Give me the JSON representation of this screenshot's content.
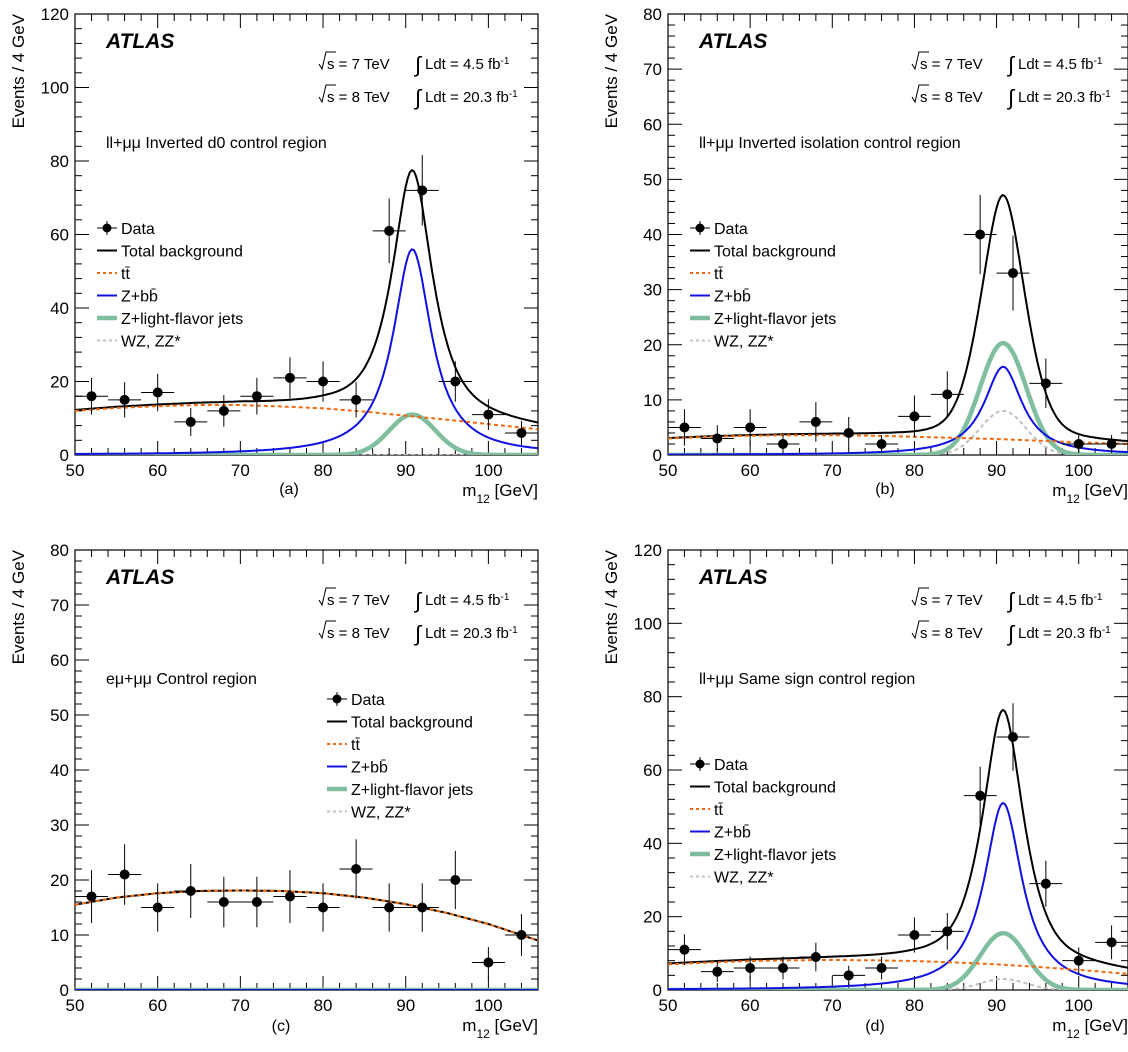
{
  "atlas_label": "ATLAS",
  "energy_lines": [
    {
      "sqrt": "s = 7 TeV",
      "lumi": "Ldt = 4.5 fb",
      "exp": "-1"
    },
    {
      "sqrt": "s = 8 TeV",
      "lumi": "Ldt = 20.3 fb",
      "exp": "-1"
    }
  ],
  "legend_entries": {
    "data": "Data",
    "total": "Total background",
    "ttbar": "tt̄",
    "zbb": "Z+bb̄",
    "zlight": "Z+light-flavor jets",
    "wzzz": "WZ, ZZ*"
  },
  "colors": {
    "data": "#000000",
    "total": "#000000",
    "ttbar": "#ee6a10",
    "zbb": "#1010e0",
    "zlight": "#7fbfa0",
    "wzzz": "#c0c0c0"
  },
  "chart_data": [
    {
      "type": "line",
      "panel": "(a)",
      "region_label": "ll+μμ Inverted d0 control region",
      "xlabel": "m12 [GeV]",
      "ylabel": "Events / 4 GeV",
      "xlim": [
        50,
        106
      ],
      "ylim": [
        0,
        120
      ],
      "xticks": [
        50,
        60,
        70,
        80,
        90,
        100
      ],
      "yticks": [
        0,
        20,
        40,
        60,
        80,
        100,
        120
      ],
      "legend_placement": "middle-left",
      "data_points": {
        "x": [
          52,
          56,
          60,
          64,
          68,
          72,
          76,
          80,
          84,
          88,
          92,
          96,
          100,
          104
        ],
        "y": [
          16,
          15,
          17,
          9,
          12,
          16,
          21,
          20,
          15,
          61,
          72,
          20,
          11,
          6
        ],
        "yerr": [
          5,
          4.8,
          5.1,
          3.8,
          4.3,
          5,
          5.6,
          5.5,
          4.8,
          8.8,
          9.6,
          5.5,
          4.2,
          3.3
        ]
      },
      "components": {
        "ttbar_x": [
          50,
          55,
          60,
          65,
          70,
          75,
          80,
          85,
          90,
          95,
          100,
          106
        ],
        "ttbar_y": [
          12,
          12.8,
          13.3,
          13.6,
          13.6,
          13.2,
          12.7,
          11.8,
          10.7,
          9.6,
          8.4,
          7
        ],
        "zbb_peak": 56,
        "zlight_peak": 11,
        "wzzz_peak": 0,
        "peak_mass": 90.8,
        "peak_width": 2.8
      }
    },
    {
      "type": "line",
      "panel": "(b)",
      "region_label": "ll+μμ Inverted isolation control region",
      "xlabel": "m12 [GeV]",
      "ylabel": "Events / 4 GeV",
      "xlim": [
        50,
        106
      ],
      "ylim": [
        0,
        80
      ],
      "xticks": [
        50,
        60,
        70,
        80,
        90,
        100
      ],
      "yticks": [
        0,
        10,
        20,
        30,
        40,
        50,
        60,
        70,
        80
      ],
      "legend_placement": "middle-left",
      "data_points": {
        "x": [
          52,
          56,
          60,
          64,
          68,
          72,
          76,
          80,
          84,
          88,
          92,
          96,
          100,
          104
        ],
        "y": [
          5,
          3,
          5,
          2,
          6,
          4,
          2,
          7,
          11,
          40,
          33,
          13,
          2,
          2
        ],
        "yerr": [
          3.3,
          2.4,
          3.3,
          1.6,
          3.6,
          2.9,
          1.6,
          3.8,
          4.2,
          7.2,
          6.8,
          4.5,
          1.6,
          1.6
        ]
      },
      "components": {
        "ttbar_x": [
          50,
          55,
          60,
          65,
          70,
          75,
          80,
          85,
          90,
          95,
          100,
          106
        ],
        "ttbar_y": [
          3,
          3.3,
          3.5,
          3.6,
          3.6,
          3.5,
          3.3,
          3.1,
          2.9,
          2.6,
          2.3,
          2
        ],
        "zbb_peak": 16,
        "zlight_peak": 20.3,
        "wzzz_peak": 8,
        "peak_mass": 90.8,
        "peak_width": 2.8
      }
    },
    {
      "type": "line",
      "panel": "(c)",
      "region_label": "eμ+μμ Control region",
      "xlabel": "m12 [GeV]",
      "ylabel": "Events / 4 GeV",
      "xlim": [
        50,
        106
      ],
      "ylim": [
        0,
        80
      ],
      "xticks": [
        50,
        60,
        70,
        80,
        90,
        100
      ],
      "yticks": [
        0,
        10,
        20,
        30,
        40,
        50,
        60,
        70,
        80
      ],
      "legend_placement": "right",
      "data_points": {
        "x": [
          52,
          56,
          60,
          64,
          68,
          72,
          76,
          80,
          84,
          88,
          92,
          96,
          100,
          104
        ],
        "y": [
          17,
          21,
          15,
          18,
          16,
          16,
          17,
          15,
          22,
          15,
          15,
          20,
          5,
          10
        ],
        "yerr": [
          4.8,
          5.5,
          4.4,
          4.9,
          4.6,
          4.6,
          4.8,
          4.4,
          5.4,
          4.4,
          4.4,
          5.3,
          2.8,
          3.8
        ]
      },
      "components": {
        "ttbar_x": [
          50,
          55,
          60,
          65,
          70,
          75,
          80,
          85,
          90,
          95,
          100,
          106
        ],
        "ttbar_y": [
          15.5,
          16.8,
          17.6,
          18,
          18.1,
          18,
          17.6,
          16.8,
          15.6,
          14,
          12,
          9
        ],
        "zbb_peak": 0,
        "zlight_peak": 0,
        "wzzz_peak": 0,
        "peak_mass": 90.8,
        "peak_width": 2.8
      }
    },
    {
      "type": "line",
      "panel": "(d)",
      "region_label": "ll+μμ Same sign control region",
      "xlabel": "m12 [GeV]",
      "ylabel": "Events / 4 GeV",
      "xlim": [
        50,
        106
      ],
      "ylim": [
        0,
        120
      ],
      "xticks": [
        50,
        60,
        70,
        80,
        90,
        100
      ],
      "yticks": [
        0,
        20,
        40,
        60,
        80,
        100,
        120
      ],
      "legend_placement": "middle-left",
      "data_points": {
        "x": [
          52,
          56,
          60,
          64,
          68,
          72,
          76,
          80,
          84,
          88,
          92,
          96,
          100,
          104
        ],
        "y": [
          11,
          5,
          6,
          6,
          9,
          4,
          6,
          15,
          16,
          53,
          69,
          29,
          8,
          13
        ],
        "yerr": [
          4.2,
          2.8,
          3.1,
          3.1,
          3.9,
          2.6,
          3.1,
          4.8,
          5.0,
          7.9,
          9.2,
          6.3,
          3.6,
          4.6
        ]
      },
      "components": {
        "ttbar_x": [
          50,
          55,
          60,
          65,
          70,
          75,
          80,
          85,
          90,
          95,
          100,
          106
        ],
        "ttbar_y": [
          7,
          7.5,
          7.9,
          8.1,
          8.2,
          8.1,
          7.9,
          7.5,
          7,
          6.3,
          5.5,
          4.4
        ],
        "zbb_peak": 51,
        "zlight_peak": 15.5,
        "wzzz_peak": 3,
        "peak_mass": 90.8,
        "peak_width": 2.8
      }
    }
  ]
}
